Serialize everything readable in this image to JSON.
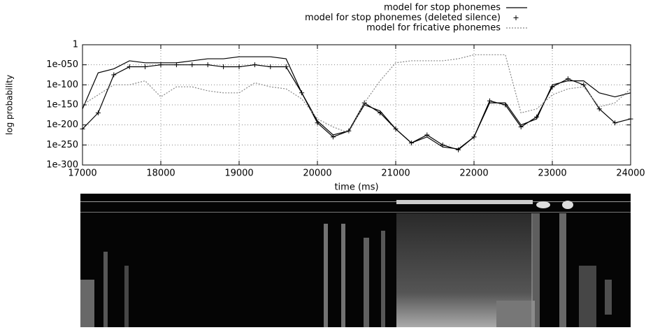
{
  "chart_data": {
    "type": "line",
    "y_label": "log probability",
    "x_label": "time (ms)",
    "log_y": true,
    "grid": true,
    "legend": "top-right",
    "x": [
      17000,
      17200,
      17400,
      17600,
      17800,
      18000,
      18200,
      18400,
      18600,
      18800,
      19000,
      19200,
      19400,
      19600,
      19800,
      20000,
      20200,
      20400,
      20600,
      20800,
      21000,
      21200,
      21400,
      21600,
      21800,
      22000,
      22200,
      22400,
      22600,
      22800,
      23000,
      23200,
      23400,
      23600,
      23800,
      24000
    ],
    "series": [
      {
        "name": "model for stop phonemes",
        "color": "#000000",
        "style": "lines",
        "dash": "solid",
        "values": [
          1e-160,
          1e-70,
          1e-60,
          1e-40,
          1e-45,
          1e-45,
          1e-45,
          1e-40,
          1e-35,
          1e-35,
          1e-30,
          1e-30,
          1e-30,
          1e-35,
          1e-120,
          1e-190,
          1e-225,
          1e-215,
          1e-150,
          1e-165,
          1e-210,
          1e-245,
          1e-230,
          1e-255,
          1e-260,
          1e-230,
          1e-145,
          1e-145,
          1e-200,
          1e-185,
          1e-100,
          1e-90,
          1e-90,
          1e-120,
          1e-130,
          1e-120
        ]
      },
      {
        "name": "model for stop phonemes (deleted silence)",
        "color": "#000000",
        "style": "linespoints",
        "dash": "solid",
        "values": [
          1e-210,
          1e-170,
          1e-75,
          1e-55,
          1e-55,
          1e-50,
          1e-50,
          1e-50,
          1e-50,
          1e-55,
          1e-55,
          1e-50,
          1e-55,
          1e-55,
          1e-120,
          1e-195,
          1e-230,
          1e-215,
          1e-145,
          1e-170,
          1e-210,
          1e-245,
          1e-225,
          1e-250,
          1e-262,
          1e-230,
          1e-140,
          1e-150,
          1e-205,
          1e-180,
          1e-105,
          1e-85,
          1e-100,
          1e-160,
          1e-195,
          1e-185
        ]
      },
      {
        "name": "model for fricative phonemes",
        "color": "#888888",
        "style": "lines",
        "dash": "dotted",
        "values": [
          1e-150,
          1e-125,
          1e-100,
          1e-100,
          1e-90,
          1e-130,
          1e-105,
          1e-105,
          1e-115,
          1e-120,
          1e-120,
          1e-95,
          1e-105,
          1e-110,
          1e-135,
          1e-185,
          1e-205,
          1e-220,
          1e-145,
          1e-90,
          1e-45,
          1e-40,
          1e-40,
          1e-40,
          1e-35,
          1e-25,
          1e-25,
          1e-25,
          1e-170,
          1e-160,
          1e-125,
          1e-110,
          1e-105,
          1e-155,
          1e-145,
          1e-110
        ]
      }
    ],
    "xlim": [
      17000,
      24000
    ],
    "xticks": [
      17000,
      18000,
      19000,
      20000,
      21000,
      22000,
      23000,
      24000
    ],
    "ylim": [
      1e-300,
      1
    ],
    "yticks": [
      {
        "value": 1e-300,
        "label": "1e-300"
      },
      {
        "value": 1e-250,
        "label": "1e-250"
      },
      {
        "value": 1e-200,
        "label": "1e-200"
      },
      {
        "value": 1e-150,
        "label": "1e-150"
      },
      {
        "value": 1e-100,
        "label": "1e-100"
      },
      {
        "value": 1e-50,
        "label": "1e-050"
      },
      1
    ]
  }
}
